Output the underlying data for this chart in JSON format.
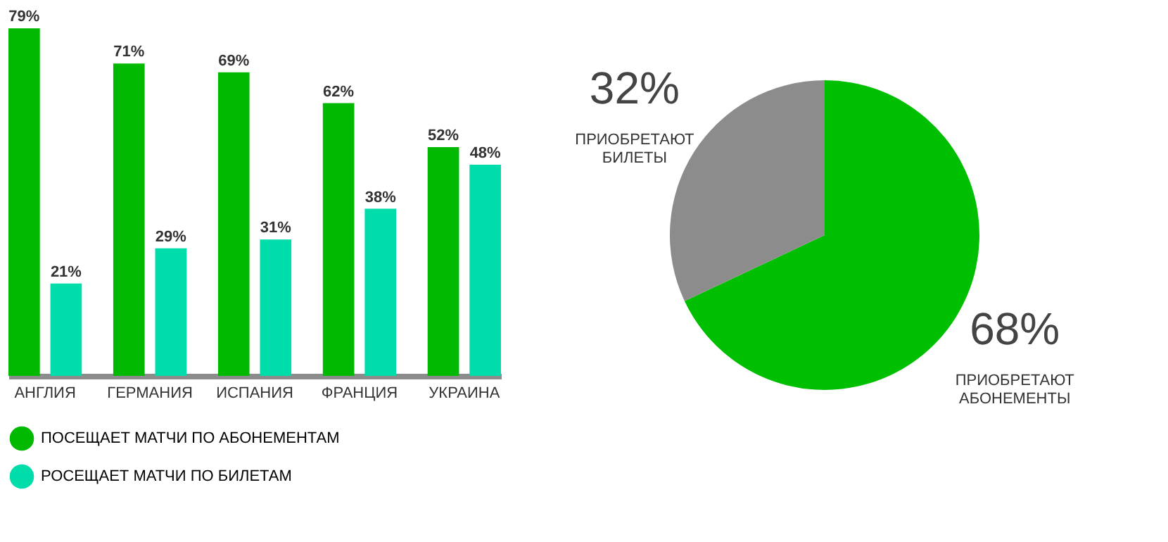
{
  "chart_data": [
    {
      "type": "bar",
      "categories": [
        "АНГЛИЯ",
        "ГЕРМАНИЯ",
        "ИСПАНИЯ",
        "ФРАНЦИЯ",
        "УКРАИНА"
      ],
      "series": [
        {
          "name": "ПОСЕЩАЕТ МАТЧИ ПО АБОНЕМЕНТАМ",
          "color": "#00b900",
          "values": [
            79,
            71,
            69,
            62,
            52
          ],
          "value_labels": [
            "79%",
            "71%",
            "69%",
            "62%",
            "52%"
          ]
        },
        {
          "name": "РОСЕЩАЕТ МАТЧИ ПО БИЛЕТАМ",
          "color": "#00dcaa",
          "values": [
            21,
            29,
            31,
            38,
            48
          ],
          "value_labels": [
            "21%",
            "29%",
            "31%",
            "38%",
            "48%"
          ]
        }
      ],
      "legend": "bottom left",
      "tick_labels": "x"
    },
    {
      "type": "pie",
      "categories": [
        "ПРИОБРЕТАЮТ АБОНЕМЕНТЫ",
        "ПРИОБРЕТАЮТ БИЛЕТЫ"
      ],
      "values": [
        68,
        32
      ],
      "colors": [
        "#00be00",
        "#8c8c8c"
      ],
      "value_labels": [
        "68%",
        "32%"
      ]
    }
  ]
}
